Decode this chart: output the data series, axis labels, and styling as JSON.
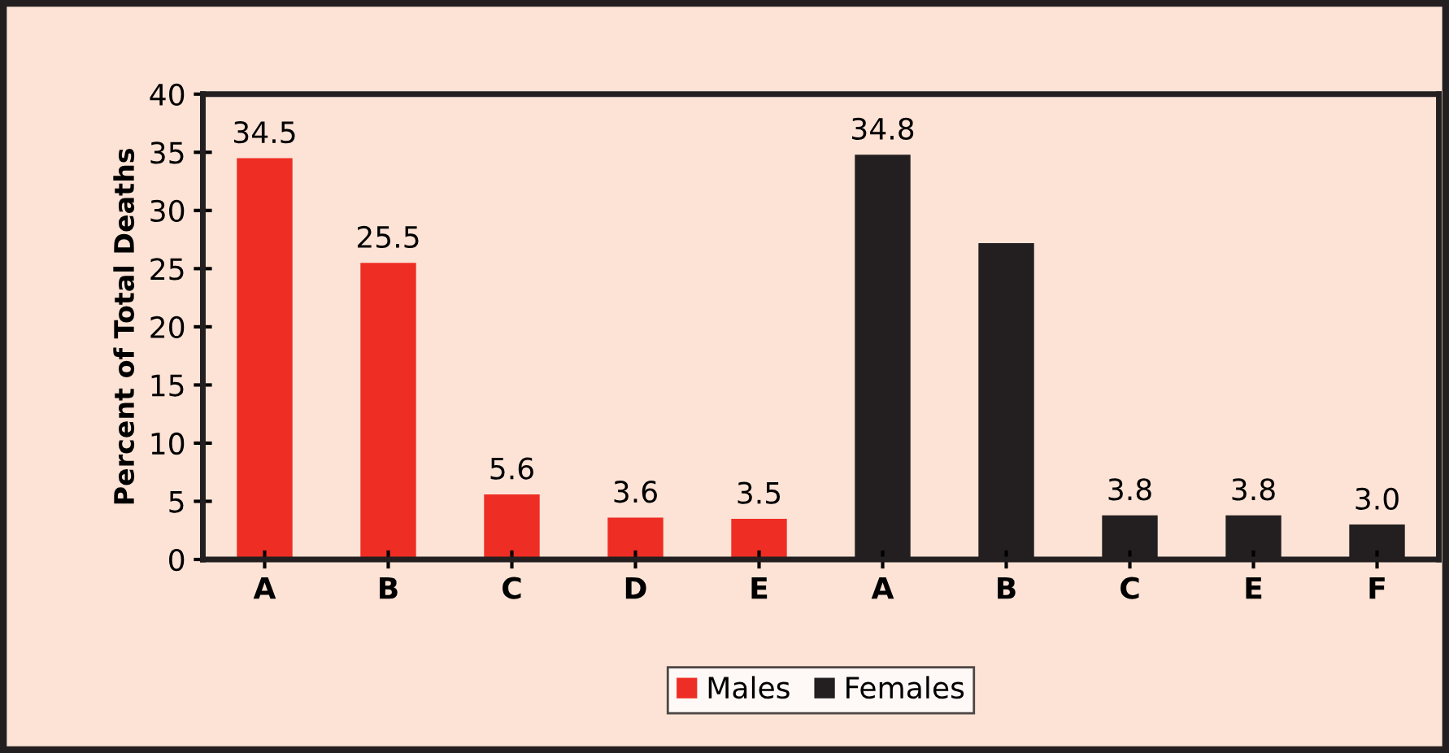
{
  "chart_data": {
    "type": "bar",
    "ylabel": "Percent of Total Deaths",
    "categories": [
      "A",
      "B",
      "C",
      "D",
      "E",
      "A",
      "B",
      "C",
      "E",
      "F"
    ],
    "series": [
      {
        "name": "Males",
        "color": "#ee2e24",
        "values": [
          34.5,
          25.5,
          5.6,
          3.6,
          3.5,
          null,
          null,
          null,
          null,
          null
        ],
        "value_labels": [
          "34.5",
          "25.5",
          "5.6",
          "3.6",
          "3.5",
          null,
          null,
          null,
          null,
          null
        ]
      },
      {
        "name": "Females",
        "color": "#231f20",
        "values": [
          null,
          null,
          null,
          null,
          null,
          34.8,
          27.2,
          3.8,
          3.8,
          3.0
        ],
        "value_labels": [
          null,
          null,
          null,
          null,
          null,
          "34.8",
          null,
          "3.8",
          "3.8",
          "3.0"
        ]
      }
    ],
    "ylim": [
      0,
      40
    ],
    "yticks": [
      0,
      5,
      10,
      15,
      20,
      25,
      30,
      35,
      40
    ],
    "grid": false,
    "legend": "bottom"
  }
}
